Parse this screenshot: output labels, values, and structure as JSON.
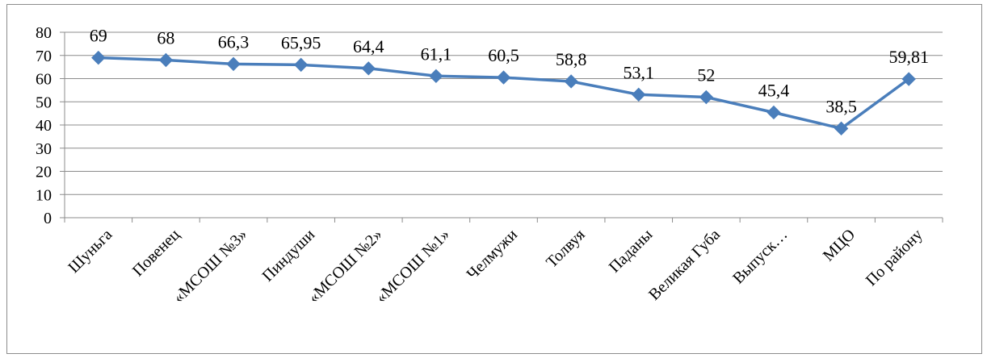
{
  "chart_data": {
    "type": "line",
    "title": "",
    "xlabel": "",
    "ylabel": "",
    "ylim": [
      0,
      80
    ],
    "yticks": [
      0,
      10,
      20,
      30,
      40,
      50,
      60,
      70,
      80
    ],
    "grid": true,
    "legend": "none",
    "categories": [
      "Шуньга",
      "Повенец",
      "«МСОШ №3»",
      "Пиндуши",
      "«МСОШ №2»",
      "«МСОШ №1»",
      "Челмужи",
      "Толвуя",
      "Паданы",
      "Великая Губа",
      "Выпуск…",
      "МЦО",
      "По району"
    ],
    "series": [
      {
        "values": [
          69,
          68,
          66.3,
          65.95,
          64.4,
          61.1,
          60.5,
          58.8,
          53.1,
          52,
          45.4,
          38.5,
          59.81
        ],
        "labels": [
          "69",
          "68",
          "66,3",
          "65,95",
          "64,4",
          "61,1",
          "60,5",
          "58,8",
          "53,1",
          "52",
          "45,4",
          "38,5",
          "59,81"
        ],
        "color": "#4a7ebb"
      }
    ]
  }
}
